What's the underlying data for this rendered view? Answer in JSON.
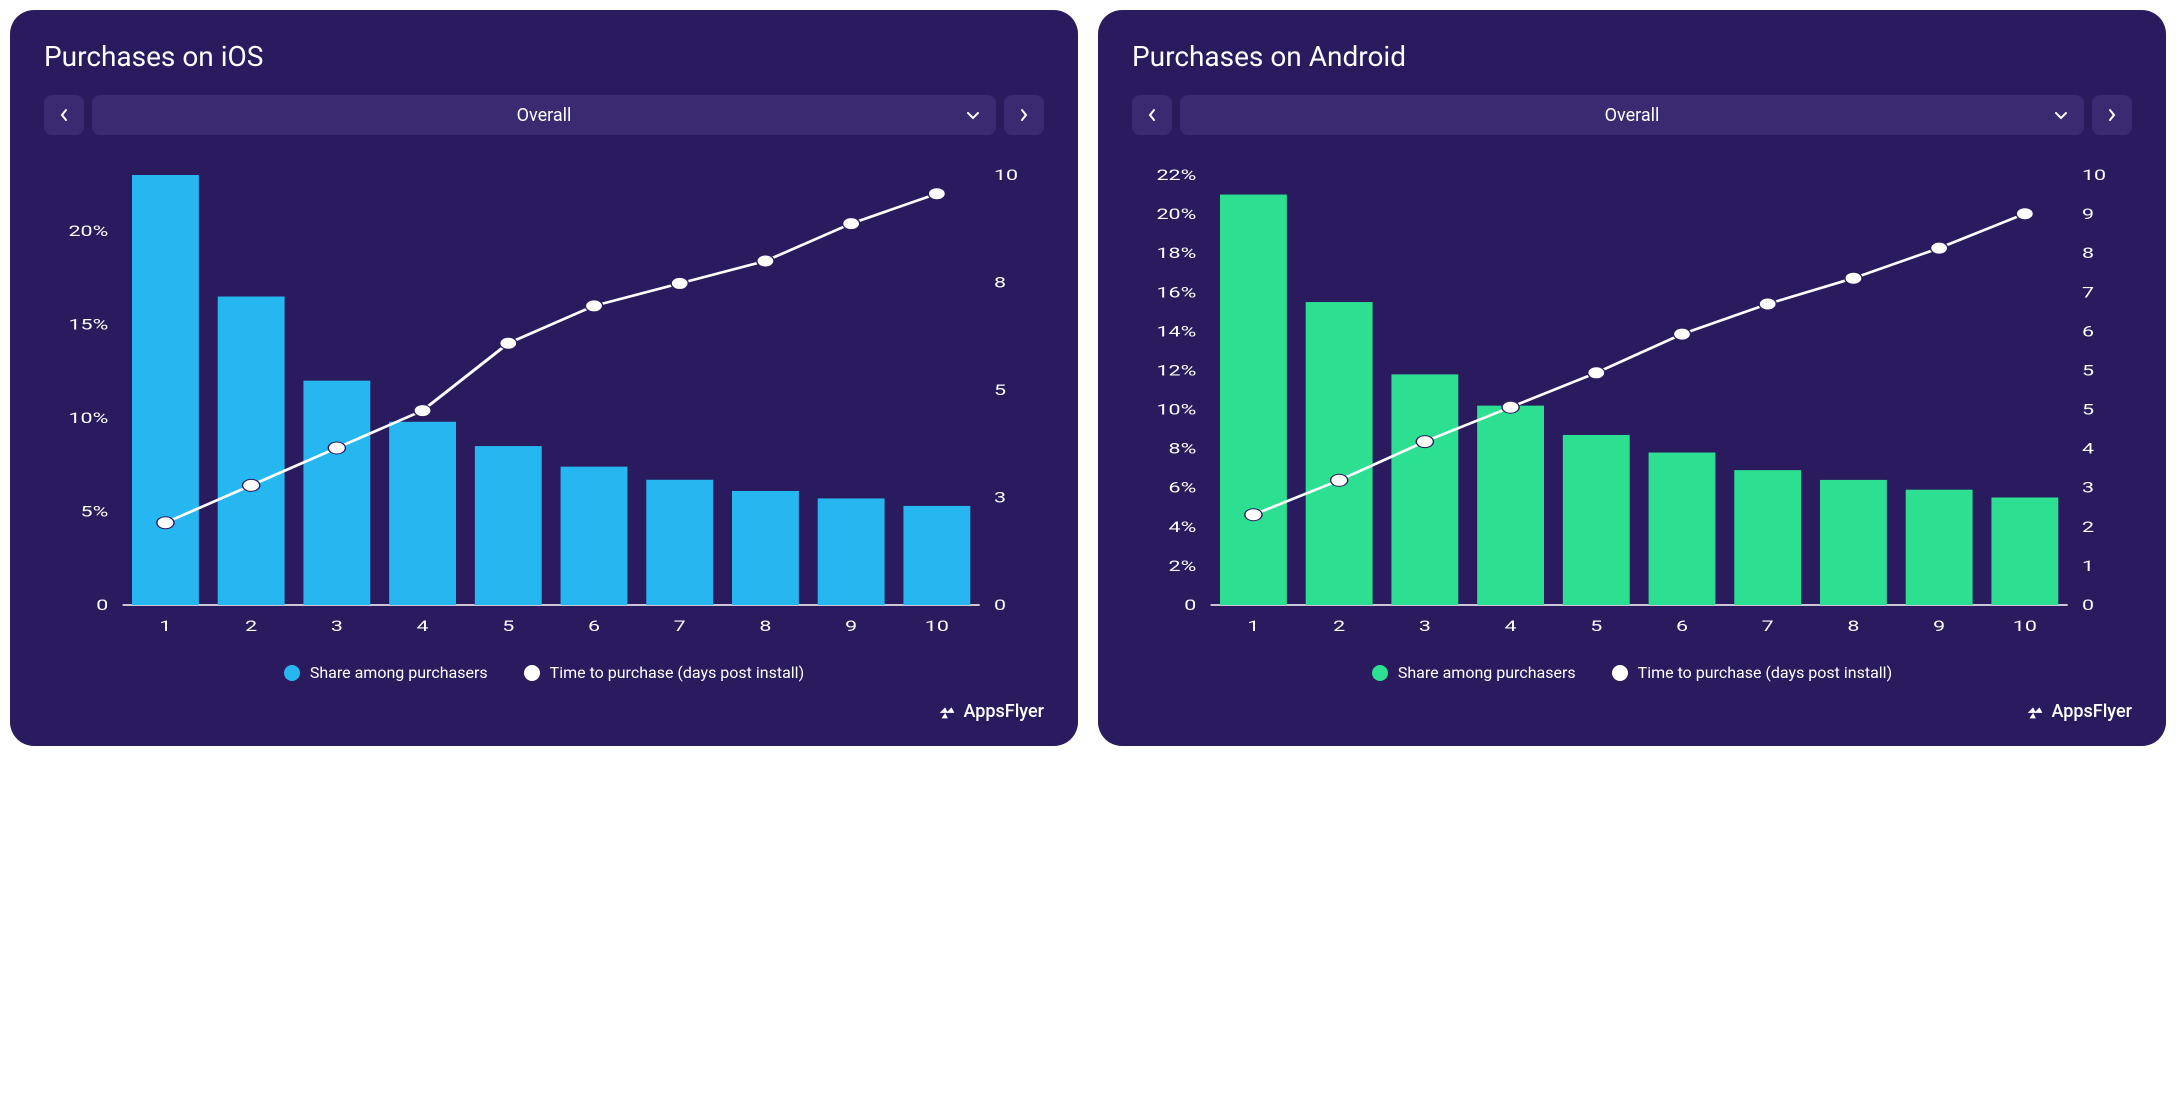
{
  "page_background": "#ffffff",
  "brand_label": "AppsFlyer",
  "panels": [
    {
      "id": "ios",
      "title": "Purchases on iOS",
      "selector": {
        "label": "Overall"
      },
      "panel_bg": "#2a1a5e",
      "selector_bg": "#3a2a72",
      "text_color": "#ffffff",
      "chart": {
        "type": "bar+line",
        "x_categories": [
          "1",
          "2",
          "3",
          "4",
          "5",
          "6",
          "7",
          "8",
          "9",
          "10"
        ],
        "bar_values_pct": [
          23,
          16.5,
          12,
          9.8,
          8.5,
          7.4,
          6.7,
          6.1,
          5.7,
          5.3
        ],
        "bar_color": "#27b7f0",
        "line_values": [
          2.2,
          3.2,
          4.2,
          5.2,
          7.0,
          8.0,
          8.6,
          9.2,
          10.2,
          11.0
        ],
        "line_color": "#ffffff",
        "marker_color": "#ffffff",
        "marker_stroke": "#2a1a5e",
        "y_left": {
          "min": 0,
          "max": 23,
          "ticks": [
            0,
            5,
            10,
            15,
            20
          ],
          "suffix_zero_plain": true
        },
        "y_left_labels": [
          "0",
          "5%",
          "10%",
          "15%",
          "20%"
        ],
        "y_right": {
          "min": 0,
          "max": 11.5,
          "ticks": [
            0,
            3,
            5,
            8,
            10
          ]
        },
        "y_right_labels": [
          "0",
          "3",
          "5",
          "8",
          "10"
        ],
        "axis_color": "#ffffff",
        "grid_color": "rgba(255,255,255,0.12)",
        "label_fontsize": 15,
        "bar_width_ratio": 0.78
      },
      "legend": {
        "series1": {
          "label": "Share among purchasers",
          "color": "#27b7f0"
        },
        "series2": {
          "label": "Time to purchase (days post install)",
          "color": "#ffffff"
        }
      }
    },
    {
      "id": "android",
      "title": "Purchases on Android",
      "selector": {
        "label": "Overall"
      },
      "panel_bg": "#2a1a5e",
      "selector_bg": "#3a2a72",
      "text_color": "#ffffff",
      "chart": {
        "type": "bar+line",
        "x_categories": [
          "1",
          "2",
          "3",
          "4",
          "5",
          "6",
          "7",
          "8",
          "9",
          "10"
        ],
        "bar_values_pct": [
          21,
          15.5,
          11.8,
          10.2,
          8.7,
          7.8,
          6.9,
          6.4,
          5.9,
          5.5
        ],
        "bar_color": "#2cdf91",
        "line_values": [
          2.1,
          2.9,
          3.8,
          4.6,
          5.4,
          6.3,
          7.0,
          7.6,
          8.3,
          9.1
        ],
        "line_color": "#ffffff",
        "marker_color": "#ffffff",
        "marker_stroke": "#2a1a5e",
        "y_left": {
          "min": 0,
          "max": 22,
          "ticks": [
            0,
            2,
            4,
            6,
            8,
            10,
            12,
            14,
            16,
            18,
            20,
            22
          ]
        },
        "y_left_labels": [
          "0",
          "2%",
          "4%",
          "6%",
          "8%",
          "10%",
          "12%",
          "14%",
          "16%",
          "18%",
          "20%",
          "22%"
        ],
        "y_right": {
          "min": 0,
          "max": 10,
          "ticks": [
            0,
            1,
            2,
            3,
            4,
            5,
            5,
            6,
            7,
            8,
            9,
            10
          ]
        },
        "y_right_labels": [
          "0",
          "1",
          "2",
          "3",
          "4",
          "5",
          "5",
          "6",
          "7",
          "8",
          "9",
          "10"
        ],
        "axis_color": "#ffffff",
        "grid_color": "rgba(255,255,255,0.12)",
        "label_fontsize": 15,
        "bar_width_ratio": 0.78
      },
      "legend": {
        "series1": {
          "label": "Share among purchasers",
          "color": "#2cdf91"
        },
        "series2": {
          "label": "Time to purchase (days post install)",
          "color": "#ffffff"
        }
      }
    }
  ]
}
